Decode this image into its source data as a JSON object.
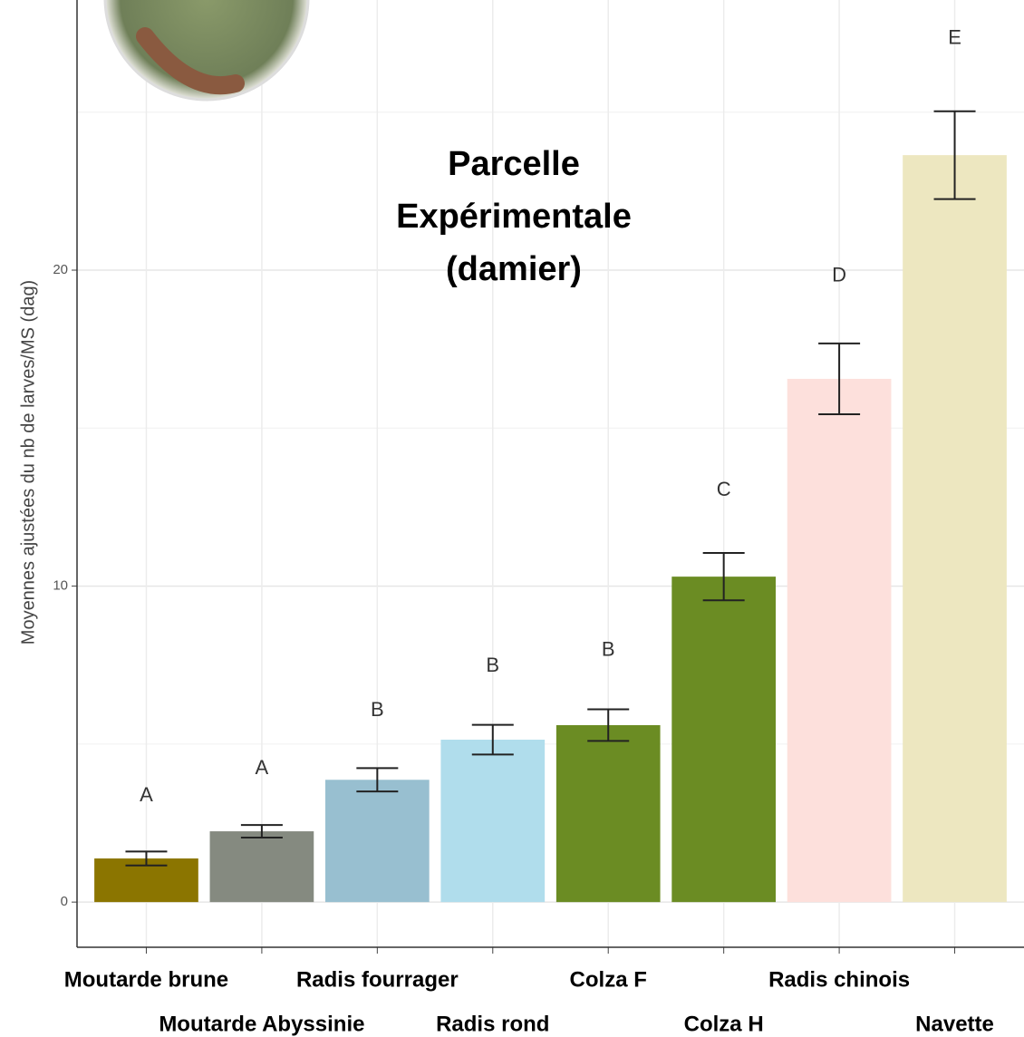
{
  "chart_data": {
    "type": "bar",
    "title": "Parcelle Expérimentale (damier)",
    "y_label": "Moyennes ajustées du nb de larves/MS (dag)",
    "categories": [
      "Moutarde brune",
      "Moutarde Abyssinie",
      "Radis fourrager",
      "Radis rond",
      "Colza F",
      "Colza H",
      "Radis chinois",
      "Navette"
    ],
    "values": [
      1.38,
      2.24,
      3.87,
      5.14,
      5.6,
      10.3,
      16.56,
      23.64
    ],
    "errors": [
      0.22,
      0.2,
      0.37,
      0.47,
      0.5,
      0.75,
      1.12,
      1.39
    ],
    "letters": [
      "A",
      "A",
      "B",
      "B",
      "B",
      "C",
      "D",
      "E"
    ],
    "colors": [
      "#8b7500",
      "#858a80",
      "#98bfd0",
      "#b0ddec",
      "#6b8c23",
      "#6b8c23",
      "#fde0dc",
      "#ede7c0"
    ],
    "ylim": [
      -1.43,
      28.55
    ],
    "yticks": [
      0,
      10,
      20
    ],
    "minor_grid": [
      5,
      15,
      25
    ],
    "grid": true
  }
}
